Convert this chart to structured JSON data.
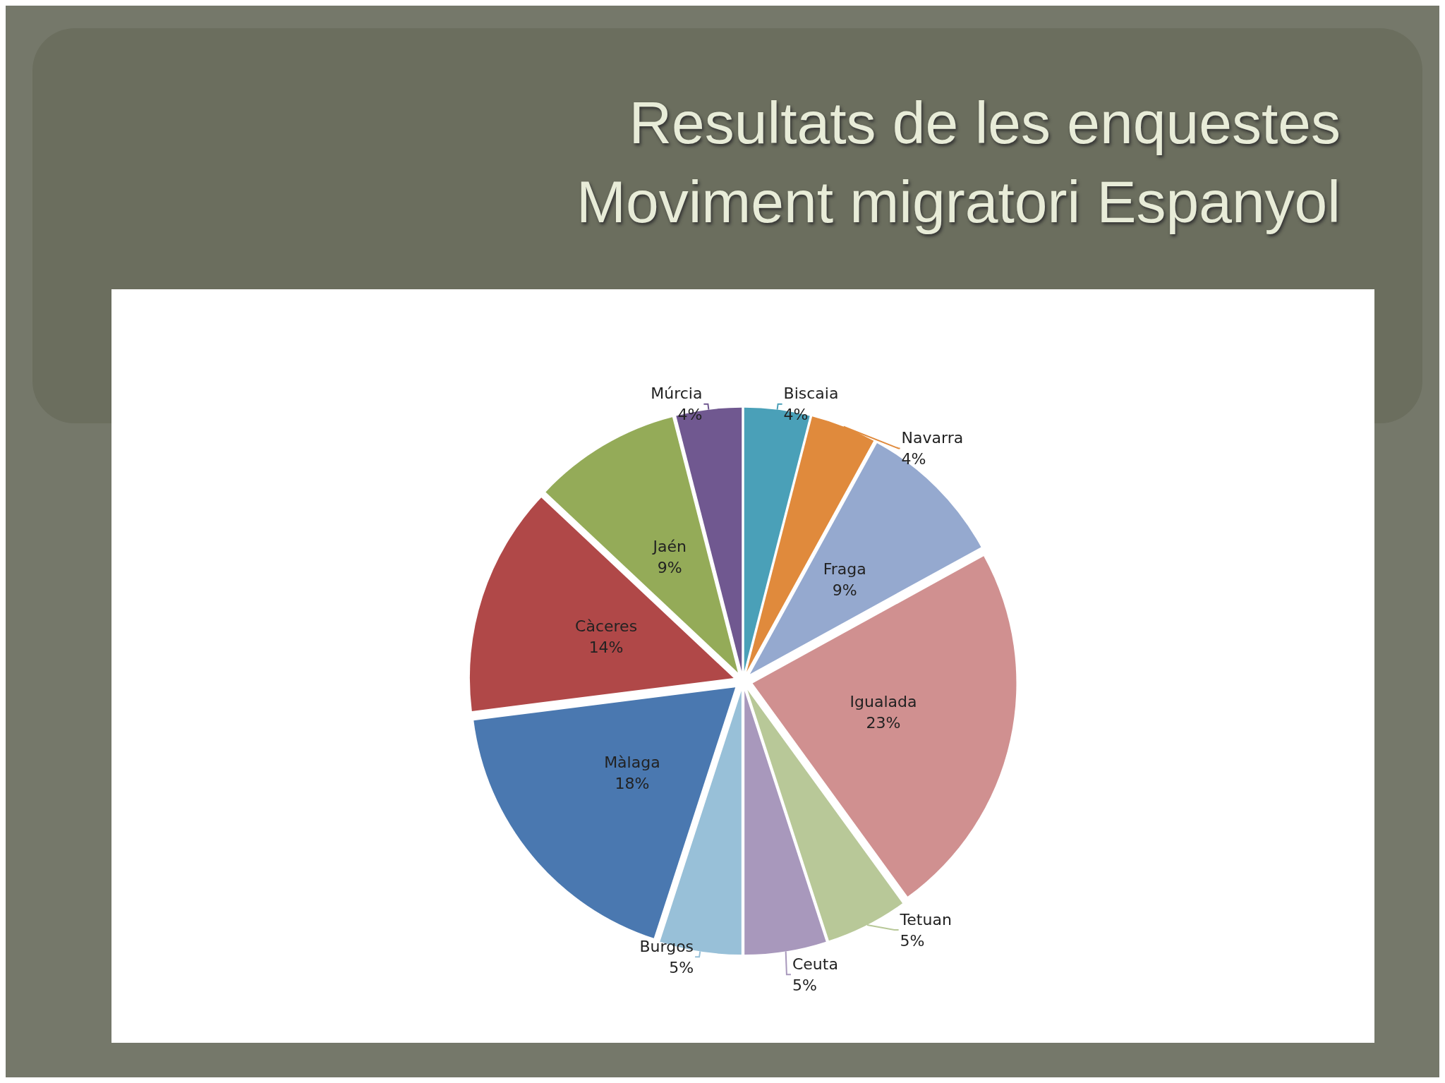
{
  "chart_data": {
    "type": "pie",
    "title": "Resultats de les enquestes",
    "subtitle": "Moviment migratori Espanyol",
    "categories": [
      "Biscaia",
      "Navarra",
      "Fraga",
      "Igualada",
      "Tetuan",
      "Ceuta",
      "Burgos",
      "Màlaga",
      "Càceres",
      "Jaén",
      "Múrcia"
    ],
    "values": [
      4,
      4,
      9,
      23,
      5,
      5,
      5,
      18,
      14,
      9,
      4
    ],
    "colors": [
      "#4aa0b8",
      "#e08a3c",
      "#95a9cf",
      "#d09090",
      "#b8c898",
      "#a898bc",
      "#98c0d8",
      "#4a78b0",
      "#b04848",
      "#94ab58",
      "#705890"
    ],
    "value_labels": [
      "4%",
      "4%",
      "9%",
      "23%",
      "5%",
      "5%",
      "5%",
      "18%",
      "14%",
      "9%",
      "4%"
    ]
  }
}
